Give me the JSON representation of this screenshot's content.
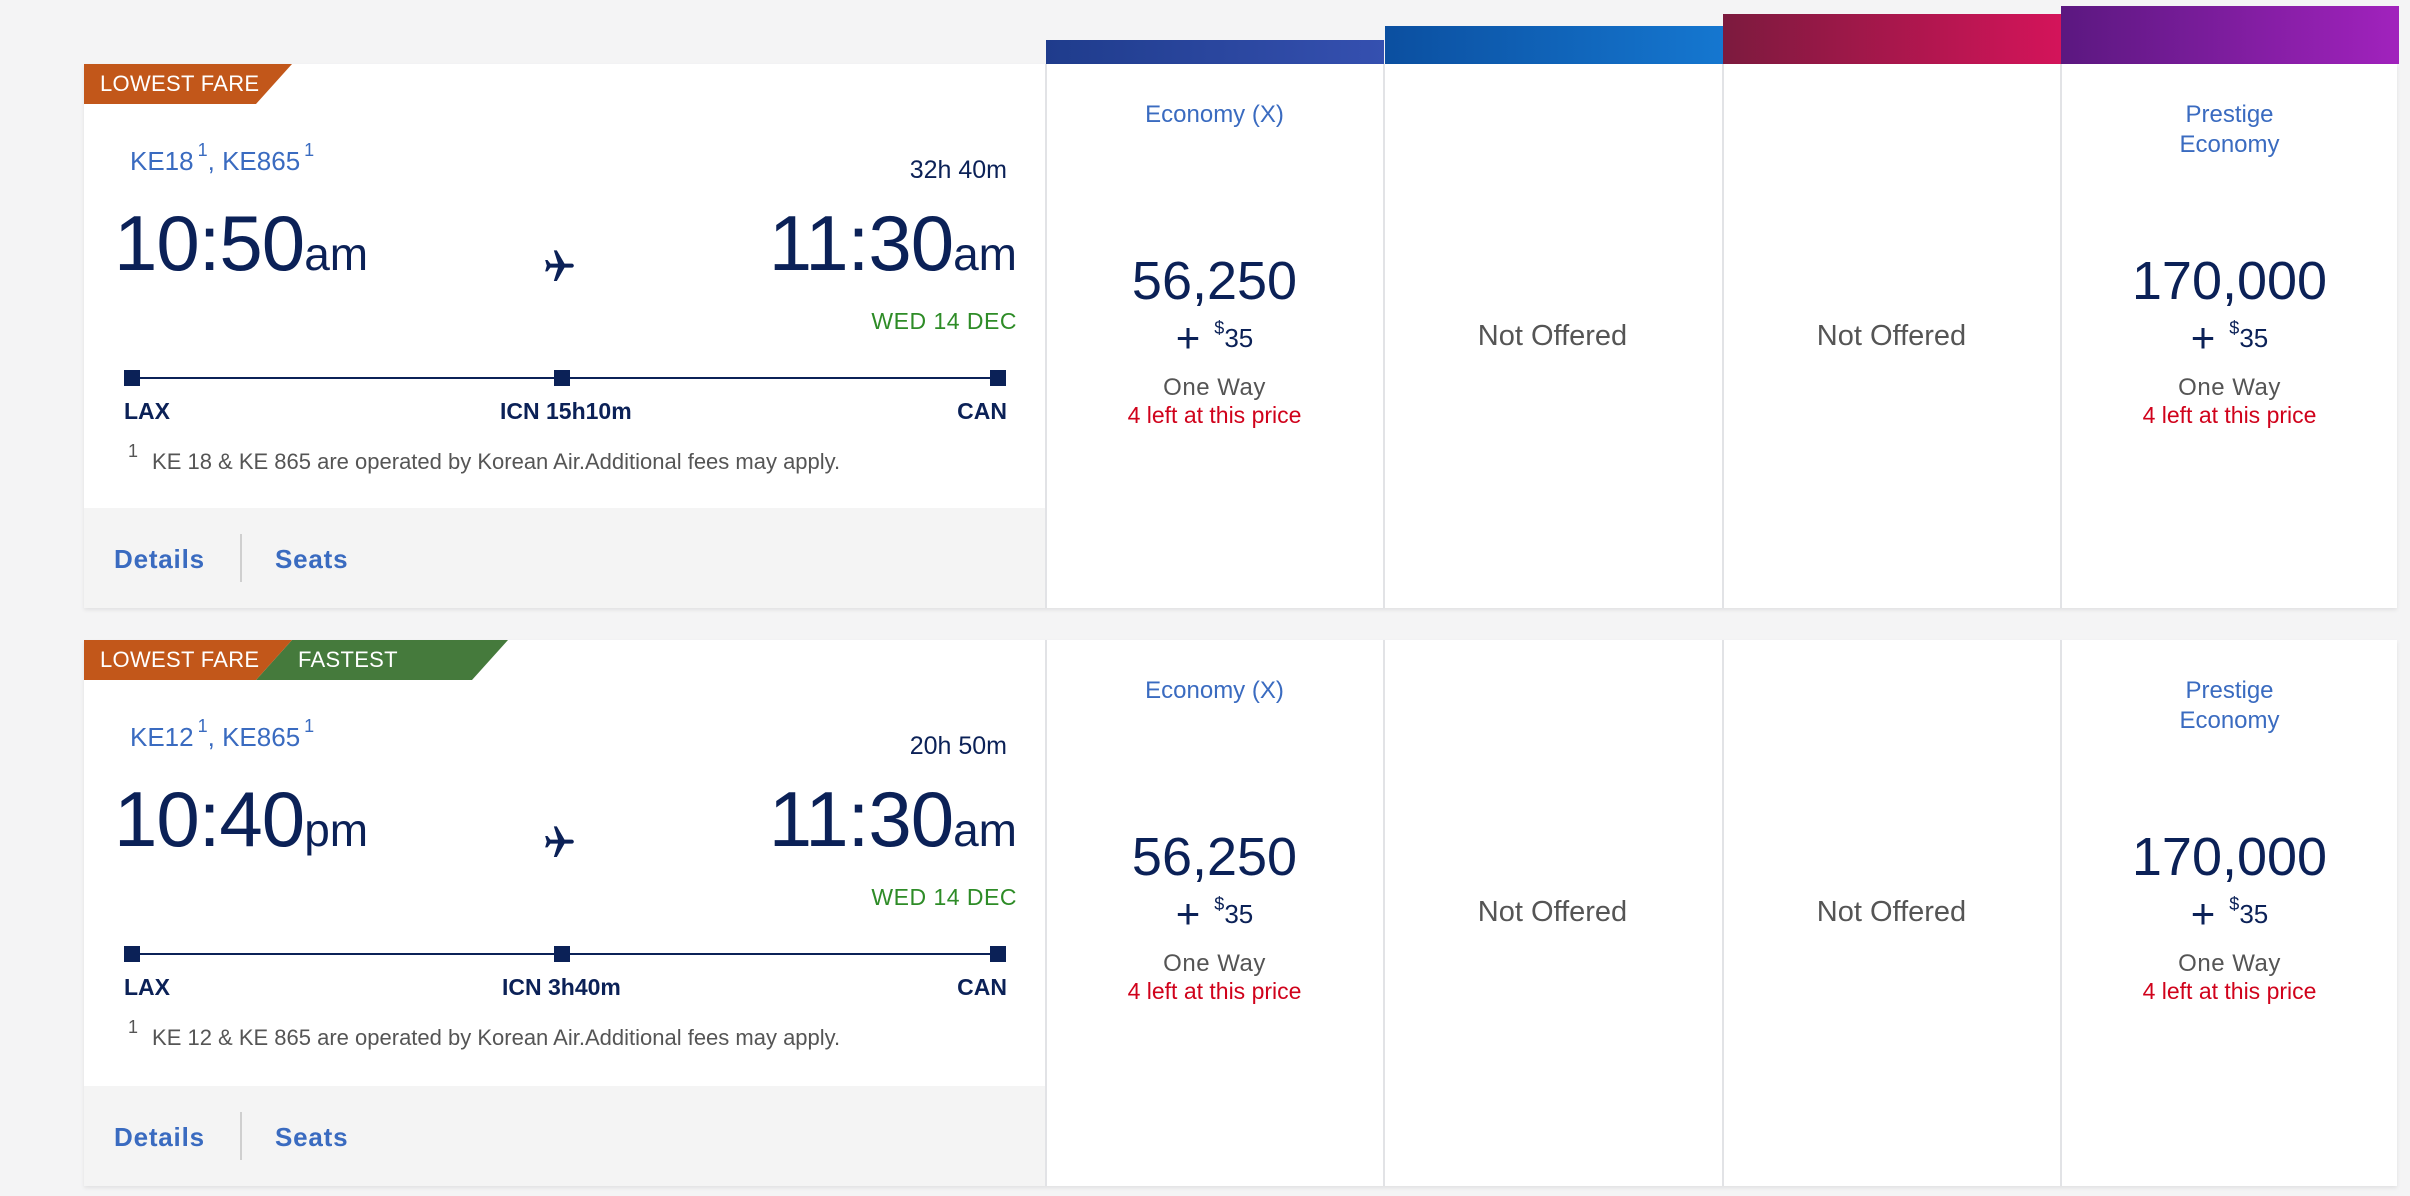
{
  "headers": [
    {
      "color": "#1f3c8c",
      "color2": "#3550b0"
    },
    {
      "color": "#0b4fa0",
      "color2": "#1577d0"
    },
    {
      "color": "#7c1a3e",
      "color2": "#d4145a"
    },
    {
      "color": "#5b1880",
      "color2": "#a122bd"
    }
  ],
  "flights": [
    {
      "tags": [
        "LOWEST FARE"
      ],
      "flight_a": "KE18",
      "flight_b": "KE865",
      "fn_mark": "1",
      "sep": ",",
      "duration": "32h 40m",
      "dep_time": "10:50",
      "dep_ampm": "am",
      "arr_time": "11:30",
      "arr_ampm": "am",
      "arr_date": "WED 14 DEC",
      "origin": "LAX",
      "stop": "ICN 15h10m",
      "destination": "CAN",
      "footnote": "KE 18 & KE 865 are operated by Korean Air.Additional fees may apply.",
      "details": "Details",
      "seats": "Seats",
      "fares": [
        {
          "name": "Economy (X)",
          "miles": "56,250",
          "plus": "+",
          "currency": "$",
          "fee": "35",
          "type": "One Way",
          "availability": "4 left at this price"
        },
        {
          "status": "Not Offered"
        },
        {
          "status": "Not Offered"
        },
        {
          "name": "Prestige\nEconomy",
          "miles": "170,000",
          "plus": "+",
          "currency": "$",
          "fee": "35",
          "type": "One Way",
          "availability": "4 left at this price"
        }
      ]
    },
    {
      "tags": [
        "LOWEST FARE",
        "FASTEST"
      ],
      "flight_a": "KE12",
      "flight_b": "KE865",
      "fn_mark": "1",
      "sep": ",",
      "duration": "20h 50m",
      "dep_time": "10:40",
      "dep_ampm": "pm",
      "arr_time": "11:30",
      "arr_ampm": "am",
      "arr_date": "WED 14 DEC",
      "origin": "LAX",
      "stop": "ICN 3h40m",
      "destination": "CAN",
      "footnote": "KE 12 & KE 865 are operated by Korean Air.Additional fees may apply.",
      "details": "Details",
      "seats": "Seats",
      "fares": [
        {
          "name": "Economy (X)",
          "miles": "56,250",
          "plus": "+",
          "currency": "$",
          "fee": "35",
          "type": "One Way",
          "availability": "4 left at this price"
        },
        {
          "status": "Not Offered"
        },
        {
          "status": "Not Offered"
        },
        {
          "name": "Prestige\nEconomy",
          "miles": "170,000",
          "plus": "+",
          "currency": "$",
          "fee": "35",
          "type": "One Way",
          "availability": "4 left at this price"
        }
      ]
    }
  ]
}
